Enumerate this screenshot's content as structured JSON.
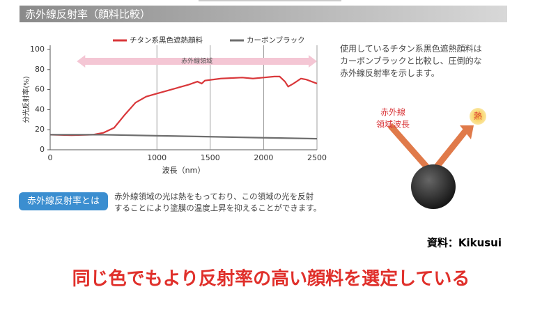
{
  "header": {
    "title": "赤外線反射率（顔料比較）"
  },
  "chart_data": {
    "type": "line",
    "y_label": "分光反射率(%)",
    "x_label": "波長（nm）",
    "annotation": {
      "text": "赤外線領域",
      "range": [
        250,
        2500
      ]
    },
    "xlim": [
      0,
      2500
    ],
    "xticks": [
      0,
      1000,
      1500,
      2000,
      2500
    ],
    "ylim": [
      0,
      100
    ],
    "yticks": [
      0,
      20,
      40,
      60,
      80,
      100
    ],
    "grid": "x",
    "series": [
      {
        "name": "チタン系黒色遮熱顔料",
        "color": "#d9373a",
        "x": [
          0,
          200,
          400,
          500,
          600,
          700,
          800,
          900,
          1000,
          1100,
          1200,
          1300,
          1380,
          1420,
          1450,
          1600,
          1800,
          1900,
          2000,
          2100,
          2150,
          2200,
          2230,
          2280,
          2350,
          2400,
          2500
        ],
        "values": [
          15,
          14.5,
          15,
          17,
          22,
          35,
          47,
          53,
          56,
          59,
          62,
          65,
          68,
          66,
          69,
          71,
          72,
          71,
          72,
          73,
          73,
          68,
          63,
          66,
          71,
          70,
          66
        ]
      },
      {
        "name": "カーボンブラック",
        "color": "#6e6e6e",
        "x": [
          0,
          500,
          1000,
          1500,
          2000,
          2500
        ],
        "values": [
          15,
          15,
          14,
          13,
          12,
          11
        ]
      }
    ]
  },
  "description": [
    "使用しているチタン系黒色遮熱顔料は",
    "カーボンブラックと比較し、圧倒的な",
    "赤外線反射率を示します。"
  ],
  "diagram": {
    "label": [
      "赤外線",
      "領域波長"
    ],
    "heat": "熱"
  },
  "note": {
    "title": "赤外線反射率とは",
    "text": [
      "赤外線領域の光は熱をもっており、この領域の光を反射",
      "することにより塗膜の温度上昇を抑えることができます。"
    ]
  },
  "source": "資料：Kikusui",
  "conclusion": "同じ色でもより反射率の高い顔料を選定している"
}
